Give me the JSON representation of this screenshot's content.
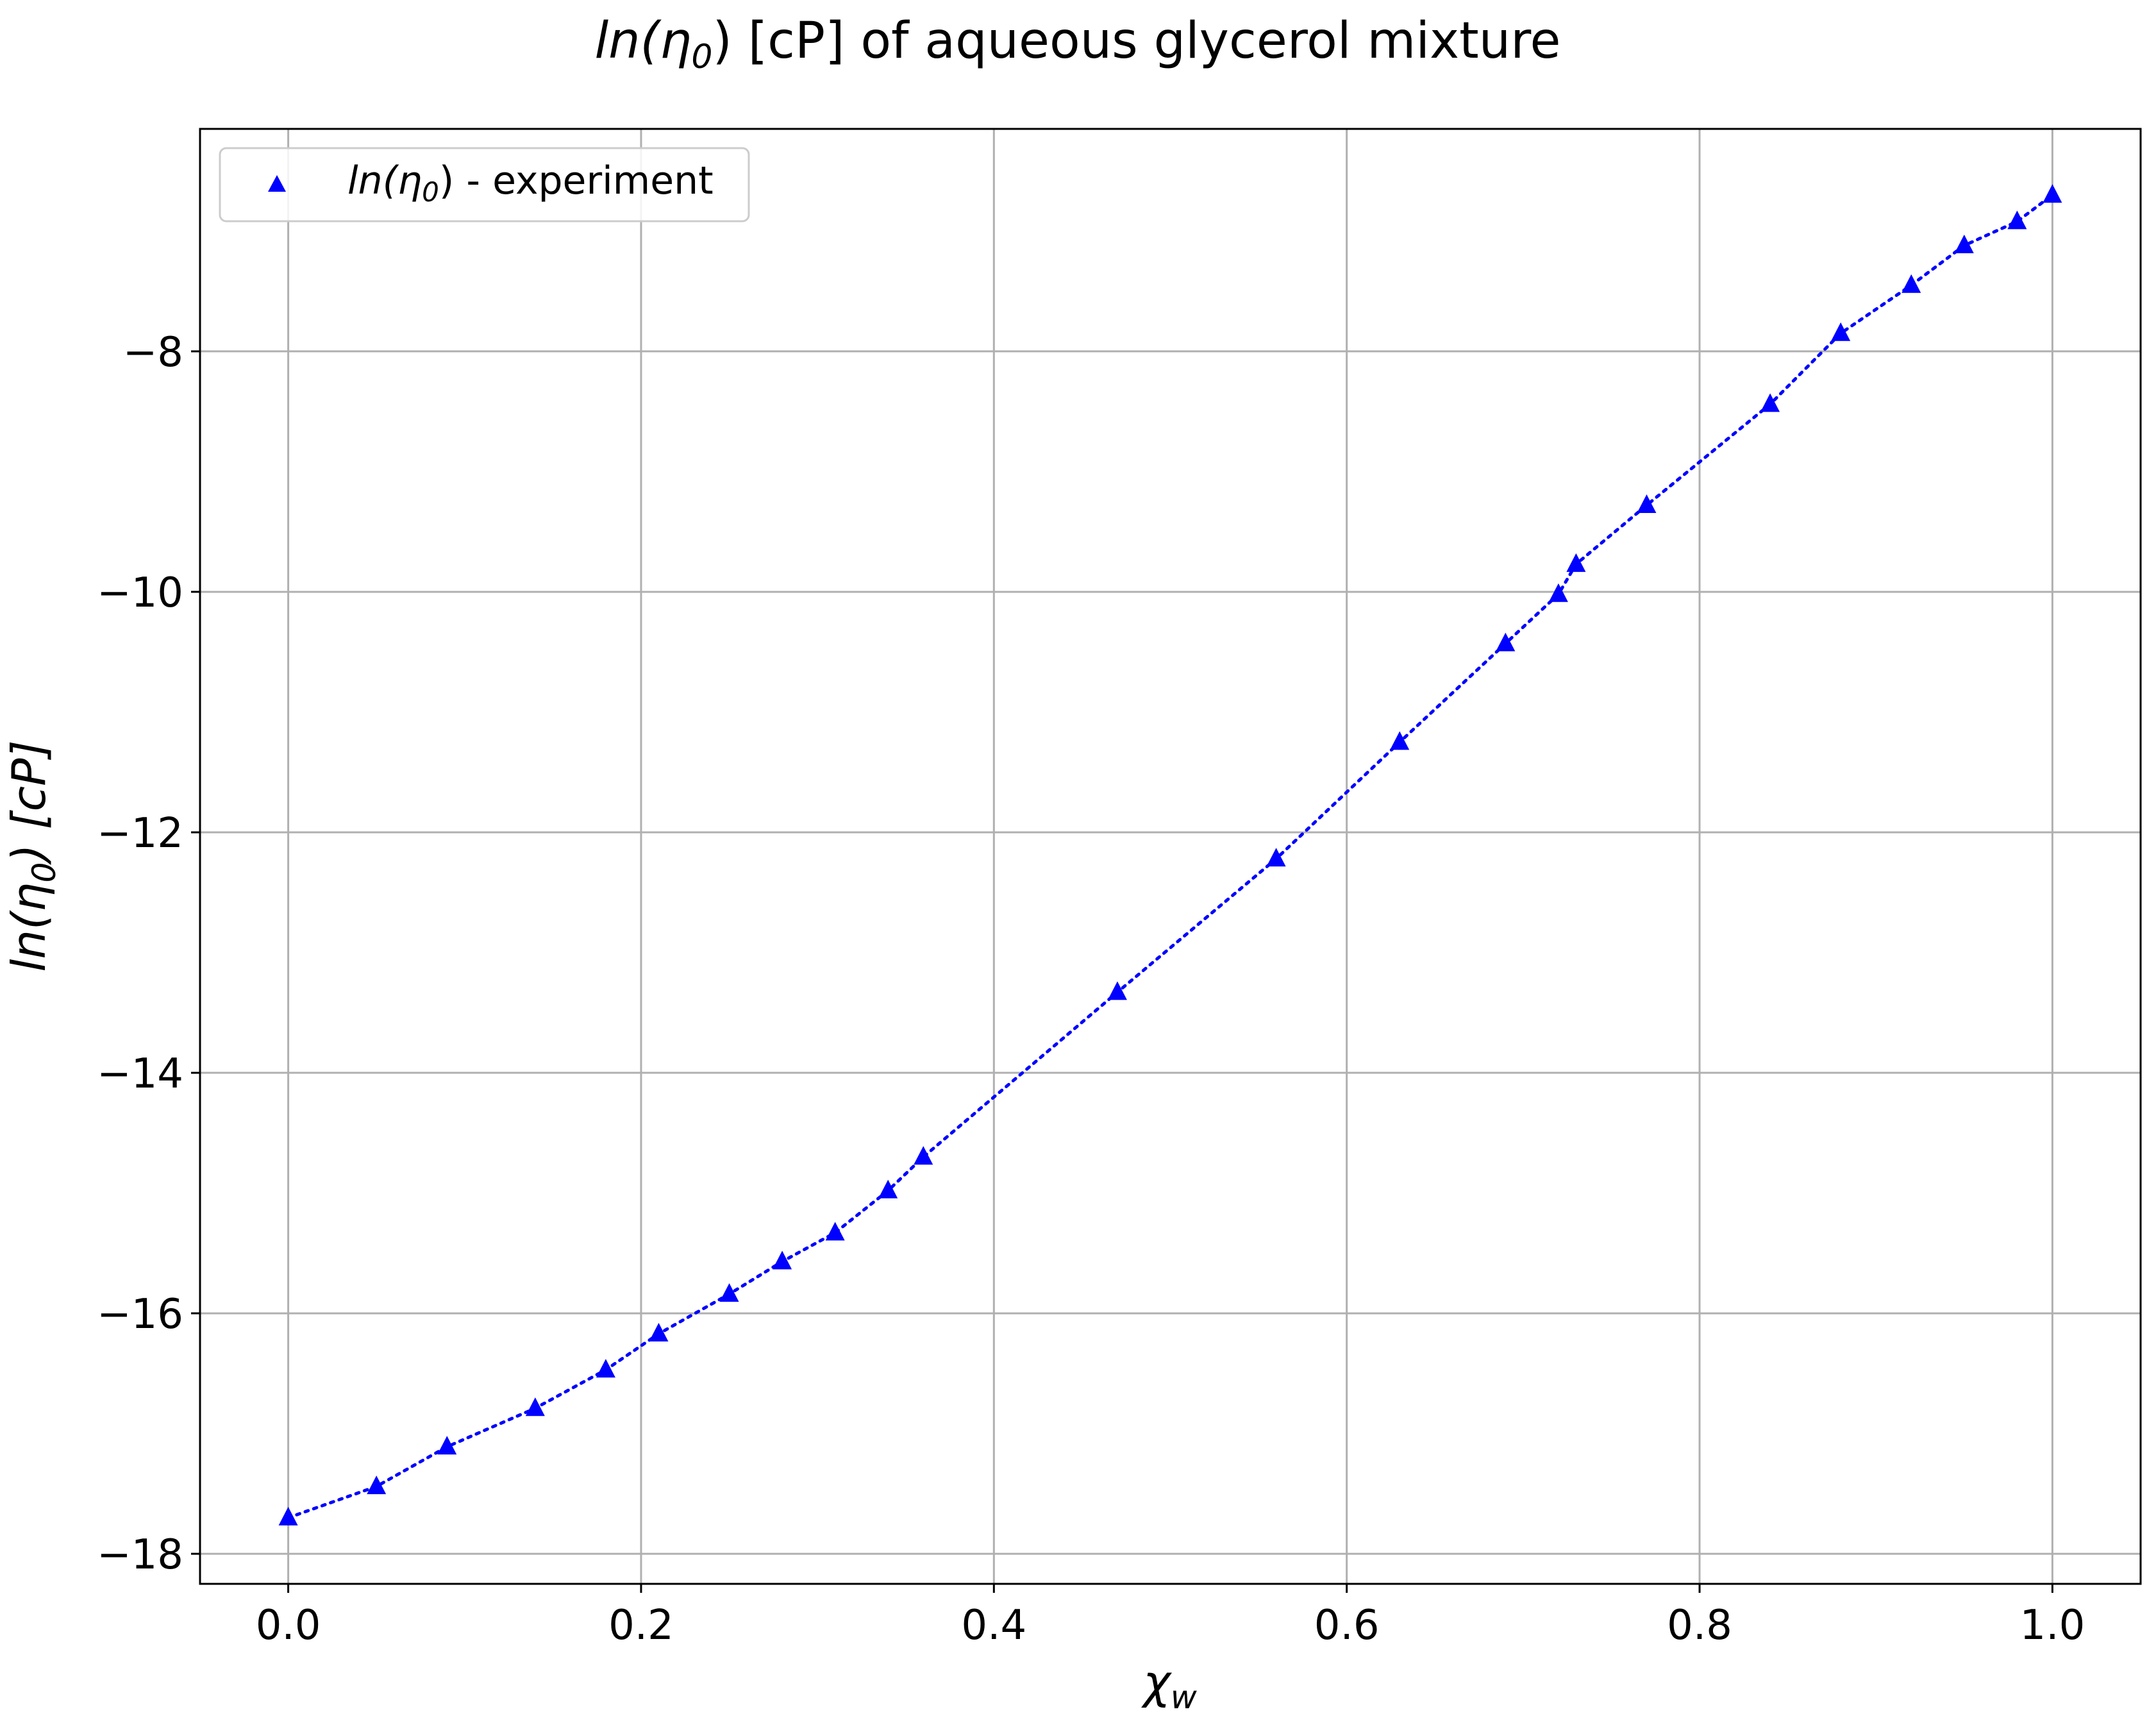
{
  "chart_data": {
    "type": "scatter",
    "title": {
      "main": "ln(η",
      "sub": "0",
      "tail": ") [cP] of aqueous glycerol mixture"
    },
    "xlabel": {
      "main": "χ",
      "sub": "w"
    },
    "ylabel": {
      "main": "ln(η",
      "sub": "0",
      "tail": ") [cP]"
    },
    "xlim": [
      -0.05,
      1.05
    ],
    "ylim": [
      -18.25,
      -6.15
    ],
    "grid": true,
    "legend_position": "upper-left",
    "xticks": [
      0.0,
      0.2,
      0.4,
      0.6,
      0.8,
      1.0
    ],
    "xtick_labels": [
      "0.0",
      "0.2",
      "0.4",
      "0.6",
      "0.8",
      "1.0"
    ],
    "yticks": [
      -8,
      -10,
      -12,
      -14,
      -16,
      -18
    ],
    "ytick_labels": [
      "−8",
      "−10",
      "−12",
      "−14",
      "−16",
      "−18"
    ],
    "series": [
      {
        "name": {
          "main": "ln(η",
          "sub": "0",
          "tail": ") - experiment"
        },
        "marker": "triangle",
        "line_style": "dotted",
        "color": "#0000ff",
        "x": [
          0.0,
          0.05,
          0.09,
          0.14,
          0.18,
          0.21,
          0.25,
          0.28,
          0.31,
          0.34,
          0.36,
          0.47,
          0.56,
          0.63,
          0.69,
          0.72,
          0.73,
          0.77,
          0.84,
          0.88,
          0.92,
          0.95,
          0.98,
          1.0
        ],
        "y": [
          -17.7,
          -17.44,
          -17.11,
          -16.79,
          -16.47,
          -16.17,
          -15.84,
          -15.57,
          -15.33,
          -14.98,
          -14.7,
          -13.33,
          -12.22,
          -11.25,
          -10.43,
          -10.02,
          -9.77,
          -9.28,
          -8.44,
          -7.85,
          -7.45,
          -7.12,
          -6.92,
          -6.7
        ]
      }
    ]
  }
}
